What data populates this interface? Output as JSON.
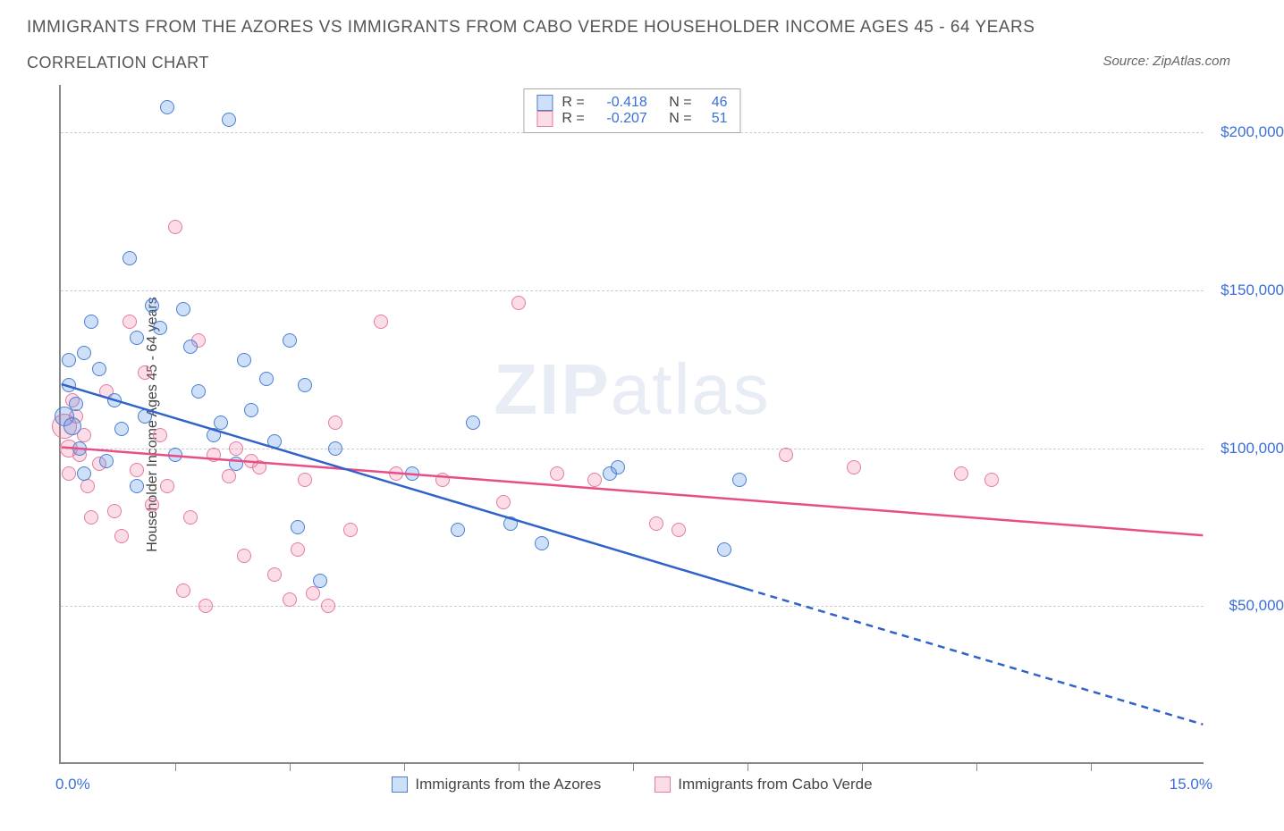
{
  "title_line1": "IMMIGRANTS FROM THE AZORES VS IMMIGRANTS FROM CABO VERDE HOUSEHOLDER INCOME AGES 45 - 64 YEARS",
  "title_line2": "CORRELATION CHART",
  "source_label": "Source: ZipAtlas.com",
  "watermark_part1": "ZIP",
  "watermark_part2": "atlas",
  "ylabel": "Householder Income Ages 45 - 64 years",
  "xaxis": {
    "min": 0,
    "max": 15,
    "min_label": "0.0%",
    "max_label": "15.0%",
    "tick_positions": [
      1.5,
      3.0,
      4.5,
      6.0,
      7.5,
      9.0,
      10.5,
      12.0,
      13.5
    ]
  },
  "yaxis": {
    "min": 0,
    "max": 215000,
    "ticks": [
      {
        "value": 50000,
        "label": "$50,000"
      },
      {
        "value": 100000,
        "label": "$100,000"
      },
      {
        "value": 150000,
        "label": "$150,000"
      },
      {
        "value": 200000,
        "label": "$200,000"
      }
    ]
  },
  "series": {
    "azores": {
      "label": "Immigrants from the Azores",
      "fill": "rgba(80, 140, 230, 0.28)",
      "stroke": "#4a7fd0",
      "line_color": "#2f63c9",
      "R_label": "R =",
      "R": "-0.418",
      "N_label": "N =",
      "N": "46",
      "trend": {
        "x1": 0,
        "y1": 120000,
        "x_data_end": 9.0,
        "y_data_end": 55000,
        "x2": 15,
        "y2": 12000
      },
      "points": [
        {
          "x": 0.05,
          "y": 110000,
          "r": 11
        },
        {
          "x": 0.1,
          "y": 120000,
          "r": 8
        },
        {
          "x": 0.1,
          "y": 128000,
          "r": 8
        },
        {
          "x": 0.15,
          "y": 107000,
          "r": 10
        },
        {
          "x": 0.2,
          "y": 114000,
          "r": 8
        },
        {
          "x": 0.25,
          "y": 100000,
          "r": 8
        },
        {
          "x": 0.3,
          "y": 92000,
          "r": 8
        },
        {
          "x": 0.3,
          "y": 130000,
          "r": 8
        },
        {
          "x": 0.4,
          "y": 140000,
          "r": 8
        },
        {
          "x": 0.5,
          "y": 125000,
          "r": 8
        },
        {
          "x": 0.6,
          "y": 96000,
          "r": 8
        },
        {
          "x": 0.7,
          "y": 115000,
          "r": 8
        },
        {
          "x": 0.8,
          "y": 106000,
          "r": 8
        },
        {
          "x": 0.9,
          "y": 160000,
          "r": 8
        },
        {
          "x": 1.0,
          "y": 135000,
          "r": 8
        },
        {
          "x": 1.0,
          "y": 88000,
          "r": 8
        },
        {
          "x": 1.1,
          "y": 110000,
          "r": 8
        },
        {
          "x": 1.2,
          "y": 145000,
          "r": 8
        },
        {
          "x": 1.3,
          "y": 138000,
          "r": 8
        },
        {
          "x": 1.4,
          "y": 208000,
          "r": 8
        },
        {
          "x": 1.5,
          "y": 98000,
          "r": 8
        },
        {
          "x": 1.6,
          "y": 144000,
          "r": 8
        },
        {
          "x": 1.7,
          "y": 132000,
          "r": 8
        },
        {
          "x": 1.8,
          "y": 118000,
          "r": 8
        },
        {
          "x": 2.0,
          "y": 104000,
          "r": 8
        },
        {
          "x": 2.1,
          "y": 108000,
          "r": 8
        },
        {
          "x": 2.2,
          "y": 204000,
          "r": 8
        },
        {
          "x": 2.3,
          "y": 95000,
          "r": 8
        },
        {
          "x": 2.4,
          "y": 128000,
          "r": 8
        },
        {
          "x": 2.5,
          "y": 112000,
          "r": 8
        },
        {
          "x": 2.7,
          "y": 122000,
          "r": 8
        },
        {
          "x": 2.8,
          "y": 102000,
          "r": 8
        },
        {
          "x": 3.0,
          "y": 134000,
          "r": 8
        },
        {
          "x": 3.1,
          "y": 75000,
          "r": 8
        },
        {
          "x": 3.2,
          "y": 120000,
          "r": 8
        },
        {
          "x": 3.4,
          "y": 58000,
          "r": 8
        },
        {
          "x": 3.6,
          "y": 100000,
          "r": 8
        },
        {
          "x": 4.6,
          "y": 92000,
          "r": 8
        },
        {
          "x": 5.2,
          "y": 74000,
          "r": 8
        },
        {
          "x": 5.9,
          "y": 76000,
          "r": 8
        },
        {
          "x": 6.3,
          "y": 70000,
          "r": 8
        },
        {
          "x": 7.2,
          "y": 92000,
          "r": 8
        },
        {
          "x": 7.3,
          "y": 94000,
          "r": 8
        },
        {
          "x": 8.7,
          "y": 68000,
          "r": 8
        },
        {
          "x": 8.9,
          "y": 90000,
          "r": 8
        },
        {
          "x": 5.4,
          "y": 108000,
          "r": 8
        }
      ]
    },
    "caboverde": {
      "label": "Immigrants from Cabo Verde",
      "fill": "rgba(235, 120, 160, 0.25)",
      "stroke": "#e57ba0",
      "line_color": "#e84d88",
      "R_label": "R =",
      "R": "-0.207",
      "N_label": "N =",
      "N": "51",
      "trend": {
        "x1": 0,
        "y1": 100000,
        "x2": 15,
        "y2": 72000
      },
      "points": [
        {
          "x": 0.05,
          "y": 107000,
          "r": 14
        },
        {
          "x": 0.1,
          "y": 100000,
          "r": 10
        },
        {
          "x": 0.1,
          "y": 92000,
          "r": 8
        },
        {
          "x": 0.15,
          "y": 115000,
          "r": 8
        },
        {
          "x": 0.2,
          "y": 110000,
          "r": 8
        },
        {
          "x": 0.25,
          "y": 98000,
          "r": 8
        },
        {
          "x": 0.3,
          "y": 104000,
          "r": 8
        },
        {
          "x": 0.35,
          "y": 88000,
          "r": 8
        },
        {
          "x": 0.4,
          "y": 78000,
          "r": 8
        },
        {
          "x": 0.5,
          "y": 95000,
          "r": 8
        },
        {
          "x": 0.6,
          "y": 118000,
          "r": 8
        },
        {
          "x": 0.7,
          "y": 80000,
          "r": 8
        },
        {
          "x": 0.8,
          "y": 72000,
          "r": 8
        },
        {
          "x": 0.9,
          "y": 140000,
          "r": 8
        },
        {
          "x": 1.0,
          "y": 93000,
          "r": 8
        },
        {
          "x": 1.1,
          "y": 124000,
          "r": 8
        },
        {
          "x": 1.2,
          "y": 82000,
          "r": 8
        },
        {
          "x": 1.3,
          "y": 104000,
          "r": 8
        },
        {
          "x": 1.4,
          "y": 88000,
          "r": 8
        },
        {
          "x": 1.5,
          "y": 170000,
          "r": 8
        },
        {
          "x": 1.6,
          "y": 55000,
          "r": 8
        },
        {
          "x": 1.7,
          "y": 78000,
          "r": 8
        },
        {
          "x": 1.8,
          "y": 134000,
          "r": 8
        },
        {
          "x": 1.9,
          "y": 50000,
          "r": 8
        },
        {
          "x": 2.0,
          "y": 98000,
          "r": 8
        },
        {
          "x": 2.2,
          "y": 91000,
          "r": 8
        },
        {
          "x": 2.3,
          "y": 100000,
          "r": 8
        },
        {
          "x": 2.4,
          "y": 66000,
          "r": 8
        },
        {
          "x": 2.5,
          "y": 96000,
          "r": 8
        },
        {
          "x": 2.6,
          "y": 94000,
          "r": 8
        },
        {
          "x": 2.8,
          "y": 60000,
          "r": 8
        },
        {
          "x": 3.0,
          "y": 52000,
          "r": 8
        },
        {
          "x": 3.1,
          "y": 68000,
          "r": 8
        },
        {
          "x": 3.2,
          "y": 90000,
          "r": 8
        },
        {
          "x": 3.3,
          "y": 54000,
          "r": 8
        },
        {
          "x": 3.5,
          "y": 50000,
          "r": 8
        },
        {
          "x": 3.8,
          "y": 74000,
          "r": 8
        },
        {
          "x": 4.2,
          "y": 140000,
          "r": 8
        },
        {
          "x": 4.4,
          "y": 92000,
          "r": 8
        },
        {
          "x": 5.0,
          "y": 90000,
          "r": 8
        },
        {
          "x": 5.8,
          "y": 83000,
          "r": 8
        },
        {
          "x": 6.0,
          "y": 146000,
          "r": 8
        },
        {
          "x": 6.5,
          "y": 92000,
          "r": 8
        },
        {
          "x": 7.0,
          "y": 90000,
          "r": 8
        },
        {
          "x": 7.8,
          "y": 76000,
          "r": 8
        },
        {
          "x": 8.1,
          "y": 74000,
          "r": 8
        },
        {
          "x": 9.5,
          "y": 98000,
          "r": 8
        },
        {
          "x": 10.4,
          "y": 94000,
          "r": 8
        },
        {
          "x": 11.8,
          "y": 92000,
          "r": 8
        },
        {
          "x": 12.2,
          "y": 90000,
          "r": 8
        },
        {
          "x": 3.6,
          "y": 108000,
          "r": 8
        }
      ]
    }
  }
}
